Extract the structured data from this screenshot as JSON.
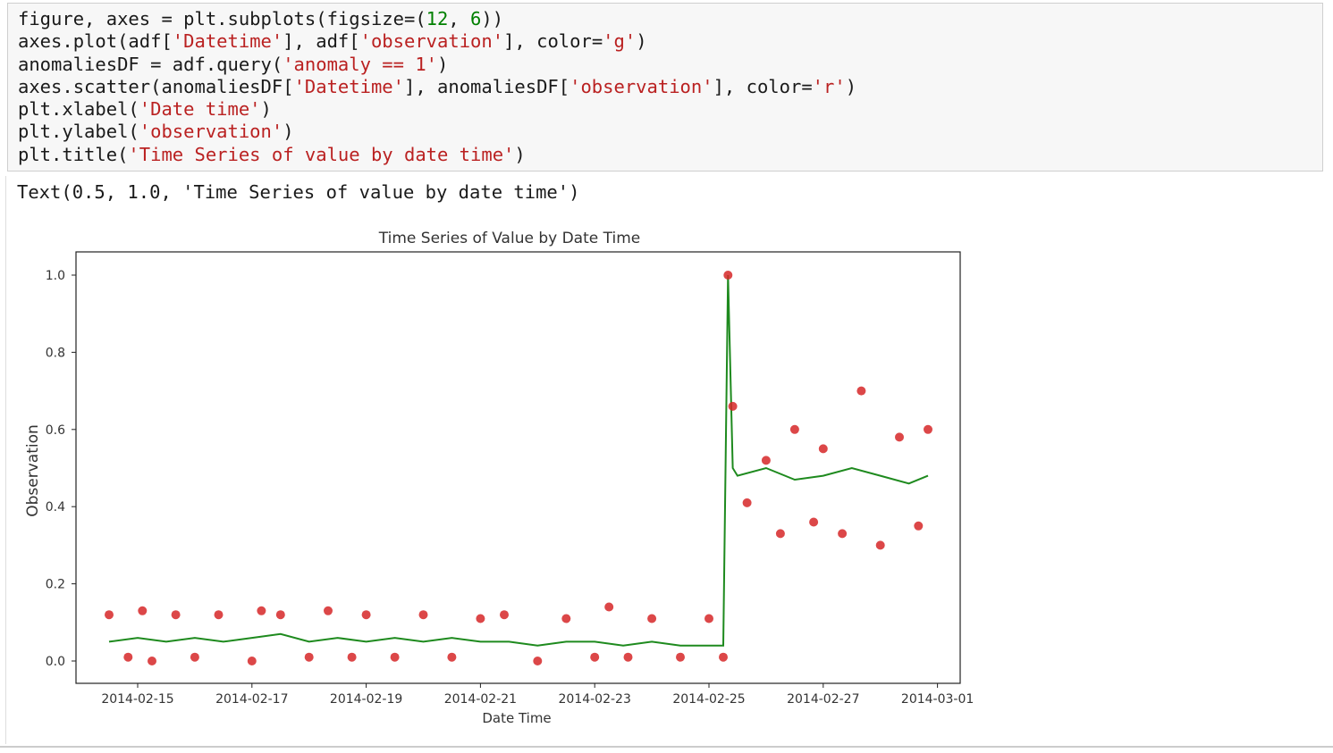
{
  "code_cell": {
    "lines": [
      [
        {
          "t": "figure, axes = plt.subplots(figsize=("
        },
        {
          "t": "12",
          "c": "n"
        },
        {
          "t": ", "
        },
        {
          "t": "6",
          "c": "n"
        },
        {
          "t": "))"
        }
      ],
      [
        {
          "t": "axes.plot(adf["
        },
        {
          "t": "'Datetime'",
          "c": "s"
        },
        {
          "t": "], adf["
        },
        {
          "t": "'observation'",
          "c": "s"
        },
        {
          "t": "], color="
        },
        {
          "t": "'g'",
          "c": "s"
        },
        {
          "t": ")"
        }
      ],
      [
        {
          "t": "anomaliesDF = adf.query("
        },
        {
          "t": "'anomaly == 1'",
          "c": "s"
        },
        {
          "t": ")"
        }
      ],
      [
        {
          "t": "axes.scatter(anomaliesDF["
        },
        {
          "t": "'Datetime'",
          "c": "s"
        },
        {
          "t": "], anomaliesDF["
        },
        {
          "t": "'observation'",
          "c": "s"
        },
        {
          "t": "], color="
        },
        {
          "t": "'r'",
          "c": "s"
        },
        {
          "t": ")"
        }
      ],
      [
        {
          "t": "plt.xlabel("
        },
        {
          "t": "'Date time'",
          "c": "s"
        },
        {
          "t": ")"
        }
      ],
      [
        {
          "t": "plt.ylabel("
        },
        {
          "t": "'observation'",
          "c": "s"
        },
        {
          "t": ")"
        }
      ],
      [
        {
          "t": "plt.title("
        },
        {
          "t": "'Time Series of value by date time'",
          "c": "s"
        },
        {
          "t": ")"
        }
      ]
    ]
  },
  "output": {
    "text_repr": "Text(0.5, 1.0, 'Time Series of value by date time')"
  },
  "colors": {
    "line": "#1e8a1e",
    "anomaly": "#d62728",
    "string": "#ba2121",
    "number": "#008000"
  },
  "chart_data": {
    "type": "line",
    "title": "Time Series of Value by Date Time",
    "xlabel": "Date Time",
    "ylabel": "Observation",
    "xlim": [
      "2014-02-14",
      "2014-03-01"
    ],
    "ylim": [
      0.0,
      1.0
    ],
    "x_ticks": [
      "2014-02-15",
      "2014-02-17",
      "2014-02-19",
      "2014-02-21",
      "2014-02-23",
      "2014-02-25",
      "2014-02-27",
      "2014-03-01"
    ],
    "y_ticks": [
      "0.0",
      "0.2",
      "0.4",
      "0.6",
      "0.8",
      "1.0"
    ],
    "grid": false,
    "series": [
      {
        "name": "",
        "mark": "line",
        "x": [
          "2014-02-14 12:00",
          "2014-02-15 00:00",
          "2014-02-15 12:00",
          "2014-02-16 00:00",
          "2014-02-16 12:00",
          "2014-02-17 00:00",
          "2014-02-17 12:00",
          "2014-02-18 00:00",
          "2014-02-18 12:00",
          "2014-02-19 00:00",
          "2014-02-19 12:00",
          "2014-02-20 00:00",
          "2014-02-20 12:00",
          "2014-02-21 00:00",
          "2014-02-21 12:00",
          "2014-02-22 00:00",
          "2014-02-22 12:00",
          "2014-02-23 00:00",
          "2014-02-23 12:00",
          "2014-02-24 00:00",
          "2014-02-24 12:00",
          "2014-02-25 06:00",
          "2014-02-25 08:00",
          "2014-02-25 10:00",
          "2014-02-25 12:00",
          "2014-02-26 00:00",
          "2014-02-26 12:00",
          "2014-02-27 00:00",
          "2014-02-27 12:00",
          "2014-02-28 00:00",
          "2014-02-28 12:00",
          "2014-02-28 20:00"
        ],
        "y": [
          0.05,
          0.06,
          0.05,
          0.06,
          0.05,
          0.06,
          0.07,
          0.05,
          0.06,
          0.05,
          0.06,
          0.05,
          0.06,
          0.05,
          0.05,
          0.04,
          0.05,
          0.05,
          0.04,
          0.05,
          0.04,
          0.04,
          1.0,
          0.5,
          0.48,
          0.5,
          0.47,
          0.48,
          0.5,
          0.48,
          0.46,
          0.48
        ]
      },
      {
        "name": "",
        "mark": "scatter",
        "x": [
          "2014-02-14 12:00",
          "2014-02-14 20:00",
          "2014-02-15 02:00",
          "2014-02-15 06:00",
          "2014-02-15 16:00",
          "2014-02-16 00:00",
          "2014-02-16 10:00",
          "2014-02-17 00:00",
          "2014-02-17 04:00",
          "2014-02-17 12:00",
          "2014-02-18 00:00",
          "2014-02-18 08:00",
          "2014-02-18 18:00",
          "2014-02-19 00:00",
          "2014-02-19 12:00",
          "2014-02-20 00:00",
          "2014-02-20 12:00",
          "2014-02-21 00:00",
          "2014-02-21 10:00",
          "2014-02-22 00:00",
          "2014-02-22 12:00",
          "2014-02-23 00:00",
          "2014-02-23 06:00",
          "2014-02-23 14:00",
          "2014-02-24 00:00",
          "2014-02-24 12:00",
          "2014-02-25 00:00",
          "2014-02-25 06:00",
          "2014-02-25 08:00",
          "2014-02-25 10:00",
          "2014-02-25 16:00",
          "2014-02-26 00:00",
          "2014-02-26 06:00",
          "2014-02-26 12:00",
          "2014-02-26 20:00",
          "2014-02-27 00:00",
          "2014-02-27 08:00",
          "2014-02-27 16:00",
          "2014-02-28 00:00",
          "2014-02-28 08:00",
          "2014-02-28 16:00",
          "2014-02-28 20:00"
        ],
        "y": [
          0.12,
          0.01,
          0.13,
          0.0,
          0.12,
          0.01,
          0.12,
          0.0,
          0.13,
          0.12,
          0.01,
          0.13,
          0.01,
          0.12,
          0.01,
          0.12,
          0.01,
          0.11,
          0.12,
          0.0,
          0.11,
          0.01,
          0.14,
          0.01,
          0.11,
          0.01,
          0.11,
          0.01,
          1.0,
          0.66,
          0.41,
          0.52,
          0.33,
          0.6,
          0.36,
          0.55,
          0.33,
          0.7,
          0.3,
          0.58,
          0.35,
          0.6
        ]
      }
    ]
  }
}
